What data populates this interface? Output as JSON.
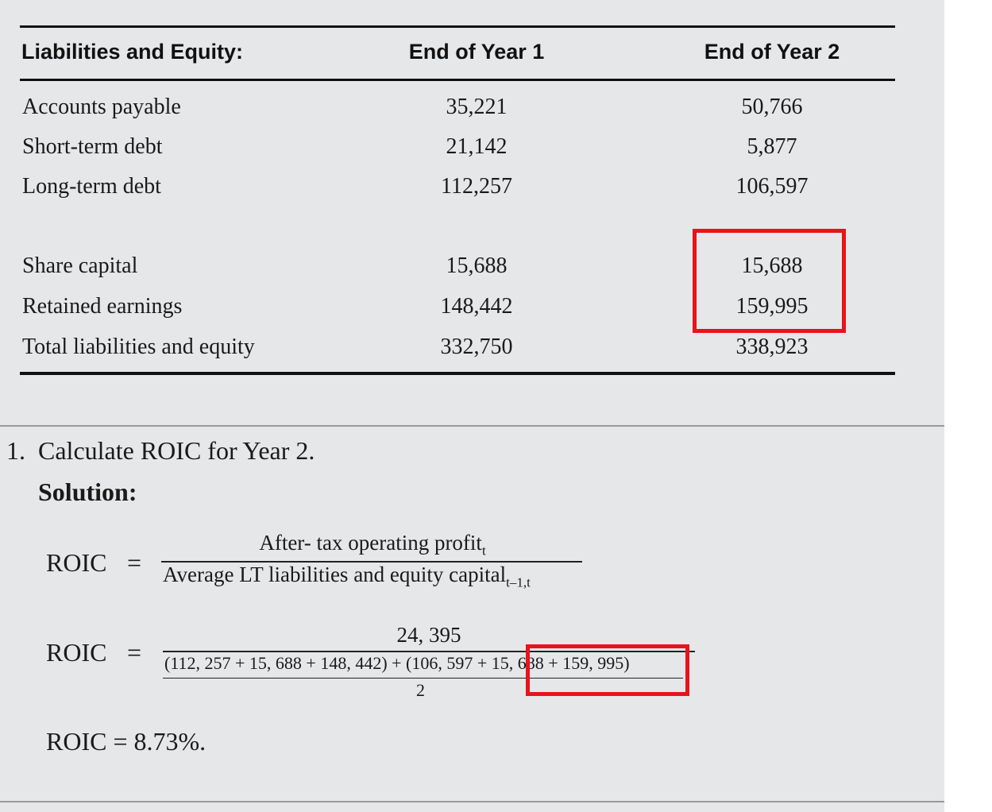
{
  "table": {
    "headers": [
      "Liabilities and Equity:",
      "End of Year 1",
      "End of Year 2"
    ],
    "rows": [
      {
        "label": "Accounts payable",
        "y1": "35,221",
        "y2": "50,766"
      },
      {
        "label": "Short-term debt",
        "y1": "21,142",
        "y2": "5,877"
      },
      {
        "label": "Long-term debt",
        "y1": "112,257",
        "y2": "106,597"
      },
      {
        "label": "Share capital",
        "y1": "15,688",
        "y2": "15,688"
      },
      {
        "label": "Retained earnings",
        "y1": "148,442",
        "y2": "159,995"
      },
      {
        "label": "Total liabilities and equity",
        "y1": "332,750",
        "y2": "338,923"
      }
    ]
  },
  "question": {
    "number": "1.",
    "text": "Calculate ROIC for Year 2.",
    "solution_label": "Solution:"
  },
  "formula1": {
    "lhs": "ROIC",
    "eq": "=",
    "numerator": "After- tax operating profit",
    "numerator_sub": "t",
    "denominator": "Average LT liabilities and equity capital",
    "denominator_sub": "t–1,t"
  },
  "formula2": {
    "lhs": "ROIC",
    "eq": "=",
    "numerator": "24, 395",
    "inner_left": "(112, 257 + 15, 688 + 148, 442) + (106, 597 +",
    "inner_right": "15, 688 + 159, 995)",
    "divisor": "2"
  },
  "result": "ROIC = 8.73%.",
  "colors": {
    "panel": "#e6e7e8",
    "highlight": "#e8131b"
  }
}
